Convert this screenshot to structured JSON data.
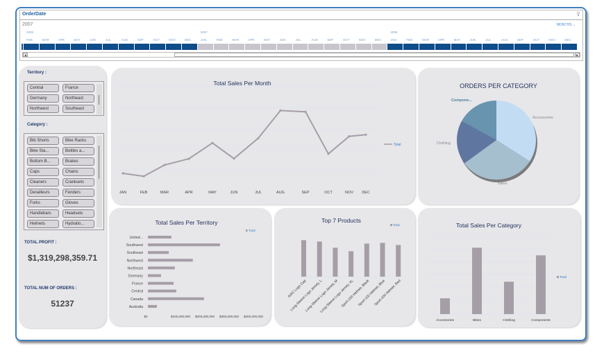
{
  "timeline": {
    "title": "OrderDate",
    "year_display": "2007",
    "level": "MONTHS ⌄",
    "filter_icon": "clear-filter-icon",
    "cells": [
      {
        "m": "",
        "y": "",
        "sel": true
      },
      {
        "m": "FEB",
        "y": "2006",
        "sel": true
      },
      {
        "m": "MAR",
        "y": "",
        "sel": true
      },
      {
        "m": "APR",
        "y": "",
        "sel": true
      },
      {
        "m": "MAY",
        "y": "",
        "sel": true
      },
      {
        "m": "JUN",
        "y": "",
        "sel": true
      },
      {
        "m": "JUL",
        "y": "",
        "sel": true
      },
      {
        "m": "AUG",
        "y": "",
        "sel": true
      },
      {
        "m": "SEP",
        "y": "",
        "sel": true
      },
      {
        "m": "OCT",
        "y": "",
        "sel": true
      },
      {
        "m": "NOV",
        "y": "",
        "sel": true
      },
      {
        "m": "DEC",
        "y": "",
        "sel": true
      },
      {
        "m": "JAN",
        "y": "2007",
        "sel": false
      },
      {
        "m": "FEB",
        "y": "",
        "sel": false
      },
      {
        "m": "MAR",
        "y": "",
        "sel": false
      },
      {
        "m": "APR",
        "y": "",
        "sel": false
      },
      {
        "m": "MAY",
        "y": "",
        "sel": false
      },
      {
        "m": "JUN",
        "y": "",
        "sel": false
      },
      {
        "m": "JUL",
        "y": "",
        "sel": false
      },
      {
        "m": "AUG",
        "y": "",
        "sel": false
      },
      {
        "m": "SEP",
        "y": "",
        "sel": false
      },
      {
        "m": "OCT",
        "y": "",
        "sel": false
      },
      {
        "m": "NOV",
        "y": "",
        "sel": false
      },
      {
        "m": "DEC",
        "y": "",
        "sel": false
      },
      {
        "m": "JAN",
        "y": "2008",
        "sel": true
      },
      {
        "m": "FEB",
        "y": "",
        "sel": true
      },
      {
        "m": "MAR",
        "y": "",
        "sel": true
      },
      {
        "m": "APR",
        "y": "",
        "sel": true
      },
      {
        "m": "MAY",
        "y": "",
        "sel": true
      },
      {
        "m": "JUN",
        "y": "",
        "sel": true
      },
      {
        "m": "JUL",
        "y": "",
        "sel": true
      },
      {
        "m": "AUG",
        "y": "",
        "sel": true
      },
      {
        "m": "SEP",
        "y": "",
        "sel": true
      },
      {
        "m": "OCT",
        "y": "",
        "sel": true
      },
      {
        "m": "NOV",
        "y": "",
        "sel": true
      },
      {
        "m": "DEC",
        "y": "",
        "sel": true
      }
    ],
    "colors": {
      "selected": "#0f4c8a",
      "unselected": "#c9c5cc"
    }
  },
  "slicers": {
    "territory_label": "Territory :",
    "territory": [
      "Central",
      "France",
      "Germany",
      "Northeast",
      "Northwest",
      "Southeast"
    ],
    "category_label": "Category :",
    "category": [
      "Bib Shorts",
      "Bike Racks",
      "Bike Sta...",
      "Bottles a...",
      "Bottom B...",
      "Brakes",
      "Caps",
      "Chains",
      "Cleaners",
      "Cranksets",
      "Derailleurs",
      "Fenders",
      "Forks",
      "Gloves",
      "Handlebars",
      "Headsets",
      "Helmets",
      "Hydratio..."
    ]
  },
  "kpis": {
    "profit_label": "TOTAL PROFIT :",
    "profit_value": "$1,319,298,359.71",
    "orders_label": "TOTAL NUM OF ORDERS :",
    "orders_value": "51237"
  },
  "chart_data": [
    {
      "type": "line",
      "title": "Total Sales Per Month",
      "categories": [
        "JAN",
        "FEB",
        "MAR",
        "APR",
        "MAY",
        "JUN",
        "JUL",
        "AUG",
        "SEP",
        "OCT",
        "NOV",
        "DEC"
      ],
      "series": [
        {
          "name": "Total",
          "values": [
            0.5,
            0.36,
            0.9,
            1.2,
            1.96,
            1.21,
            2.19,
            3.52,
            3.46,
            1.44,
            2.28,
            2.36
          ]
        }
      ],
      "ylim": [
        0,
        4.56
      ],
      "grid": true,
      "legend": "right",
      "color": "#a69ea6"
    },
    {
      "type": "pie",
      "title": "ORDERS PER CATEGORY",
      "categories": [
        "Accessories",
        "Bikes",
        "Clothing",
        "Compone..."
      ],
      "values": [
        34,
        31,
        18,
        17
      ],
      "colors": [
        "#c2dcf4",
        "#a6bfcf",
        "#5f77a0",
        "#6894b0"
      ]
    },
    {
      "type": "bar",
      "orientation": "horizontal",
      "title": "Total Sales Per Territory",
      "categories": [
        "United...",
        "Southwest",
        "Southeast",
        "Northwest",
        "Northeast",
        "Germany",
        "France",
        "Central",
        "Canada",
        "Australia"
      ],
      "series": [
        {
          "name": "Total",
          "values": [
            97000000,
            297000000,
            86000000,
            185000000,
            111000000,
            54000000,
            106000000,
            117000000,
            231000000,
            37000000
          ]
        }
      ],
      "xticks": [
        "$0",
        "$100,000,000",
        "$200,000,000",
        "$300,000,000",
        "$400,000,000"
      ],
      "xlim": [
        0,
        400000000
      ],
      "legend": "top-right",
      "color": "#a69ea6"
    },
    {
      "type": "bar",
      "title": "Top 7 Products",
      "categories": [
        "AWC Logo Cap",
        "Long-Sleeve Logo Jersey, L",
        "Long-Sleeve Logo Jersey, M",
        "Long-Sleeve Logo Jersey, XL",
        "Sport-100 Helmet, Black",
        "Sport-100 Helmet, Blue",
        "Sport-100 Helmet, Red"
      ],
      "series": [
        {
          "name": "Total",
          "values": [
            158,
            152,
            125,
            110,
            143,
            146,
            137
          ]
        }
      ],
      "ylim": [
        0,
        170
      ],
      "legend": "top-right",
      "color": "#a69ea6"
    },
    {
      "type": "bar",
      "title": "Total Sales Per Category",
      "categories": [
        "Accessories",
        "Bikes",
        "Clothing",
        "Components"
      ],
      "series": [
        {
          "name": "Total",
          "values": [
            1.2,
            5.04,
            2.46,
            4.46
          ]
        }
      ],
      "ylim": [
        0,
        6
      ],
      "grid": true,
      "legend": "right",
      "color": "#a69ea6"
    }
  ]
}
